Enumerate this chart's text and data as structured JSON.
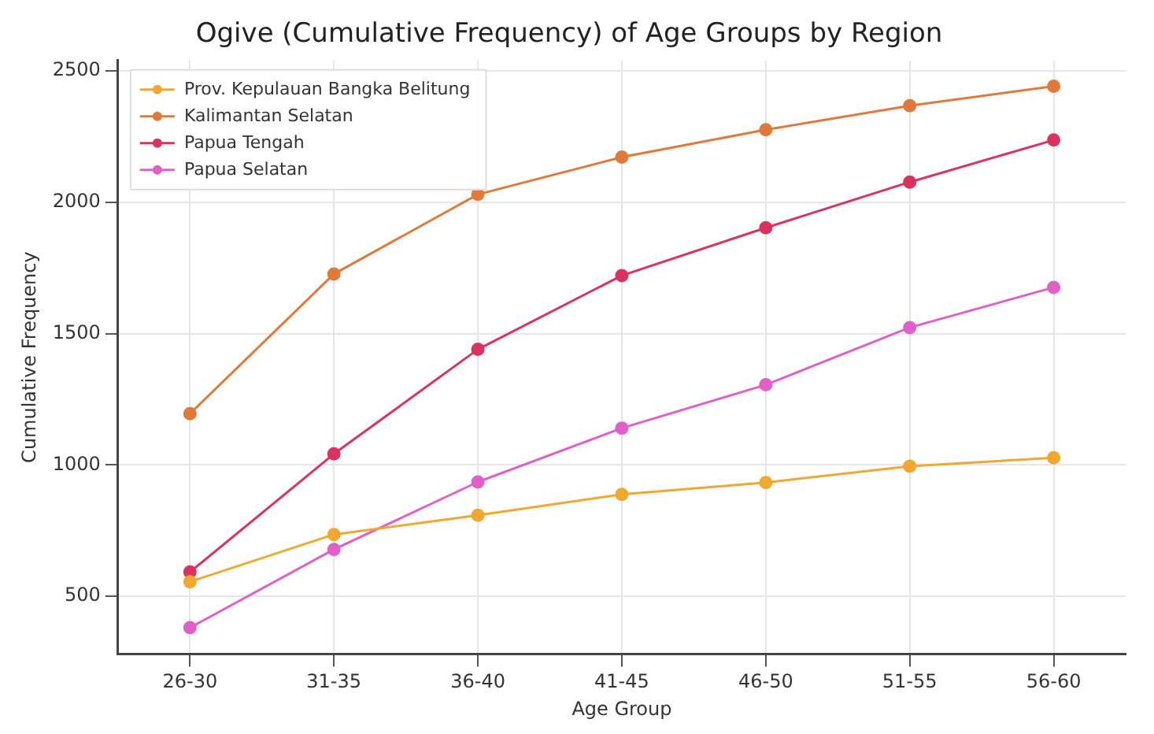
{
  "chart_data": {
    "type": "line",
    "title": "Ogive (Cumulative Frequency) of Age Groups by Region",
    "xlabel": "Age Group",
    "ylabel": "Cumulative Frequency",
    "categories": [
      "26-30",
      "31-35",
      "36-40",
      "41-45",
      "46-50",
      "51-55",
      "56-60"
    ],
    "series": [
      {
        "name": "Prov. Kepulauan Bangka Belitung",
        "color": "#f0a830",
        "values": [
          555,
          735,
          808,
          888,
          933,
          995,
          1027
        ]
      },
      {
        "name": "Kalimantan Selatan",
        "color": "#e07a3a",
        "values": [
          1195,
          1727,
          2030,
          2172,
          2276,
          2368,
          2442
        ]
      },
      {
        "name": "Papua Tengah",
        "color": "#d8345f",
        "values": [
          592,
          1042,
          1440,
          1721,
          1903,
          2077,
          2237
        ]
      },
      {
        "name": "Papua Selatan",
        "color": "#e060c8",
        "values": [
          380,
          678,
          935,
          1140,
          1305,
          1523,
          1676
        ]
      }
    ],
    "ylim": [
      280,
      2540
    ],
    "yticks": [
      500,
      1000,
      1500,
      2000,
      2500
    ],
    "grid": true,
    "legend": "top left",
    "marker": "circle",
    "line_style": "solid"
  }
}
